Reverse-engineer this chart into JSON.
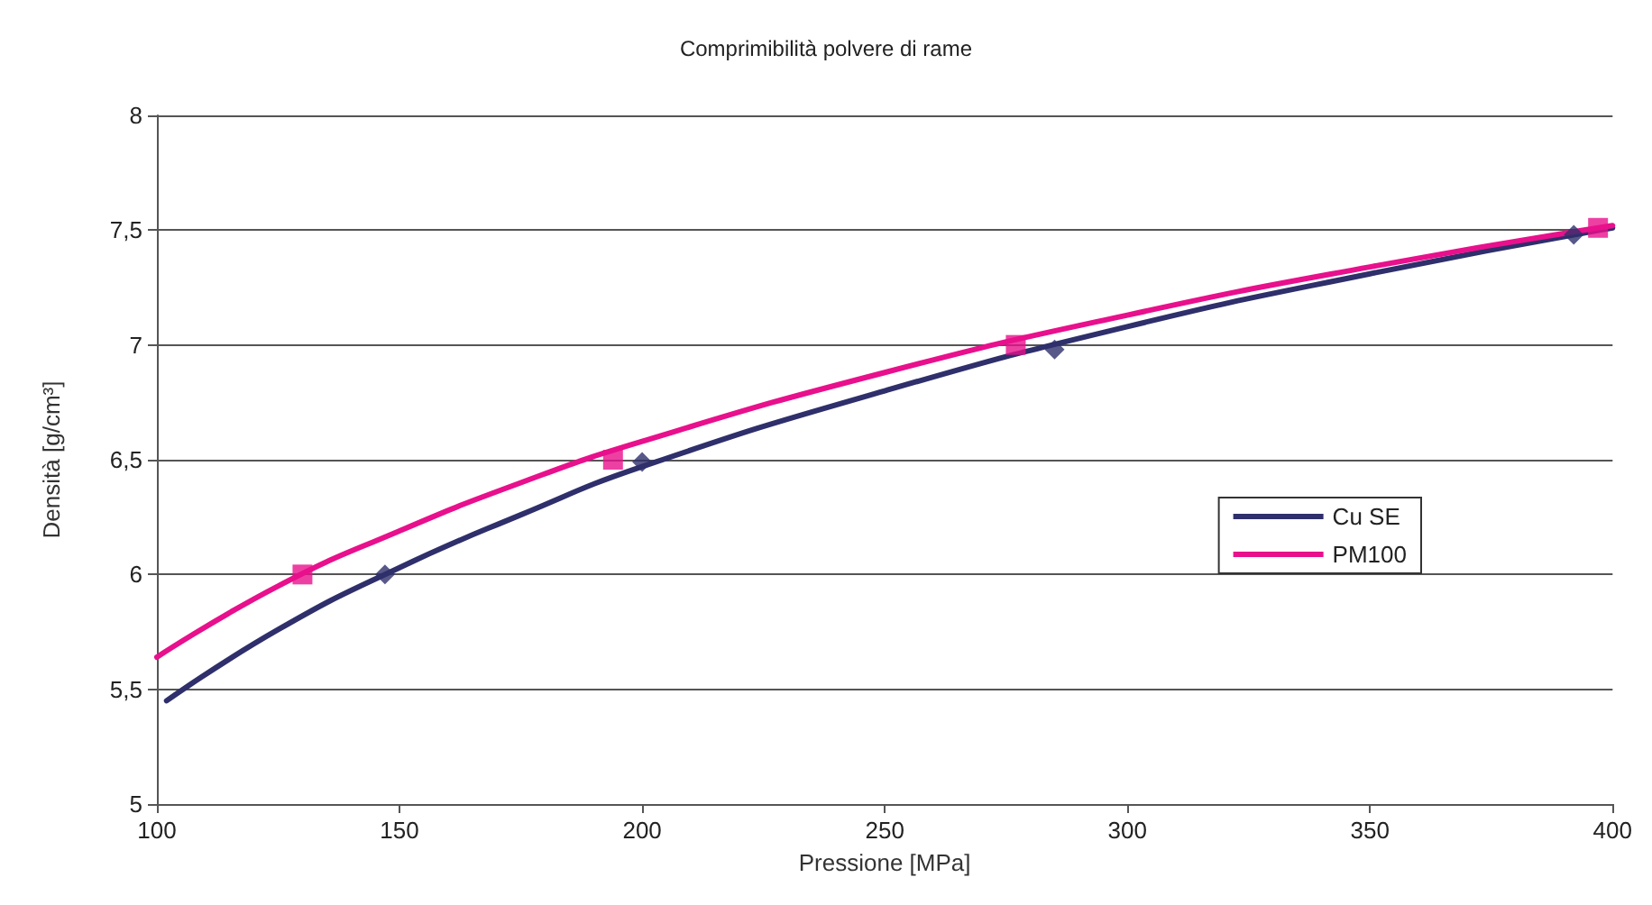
{
  "chart_data": {
    "type": "line",
    "title": "Comprimibilità polvere di rame",
    "xlabel": "Pressione [MPa]",
    "ylabel": "Densità [g/cm³]",
    "xlim": [
      100,
      400
    ],
    "xticks": [
      100,
      150,
      200,
      250,
      300,
      350,
      400
    ],
    "ylim": [
      5,
      8
    ],
    "yticks": [
      5,
      {
        "value": 5.5,
        "label": "5,5"
      },
      6,
      {
        "value": 6.5,
        "label": "6,5"
      },
      7,
      {
        "value": 7.5,
        "label": "7,5"
      },
      8
    ],
    "grid": "y",
    "legend": "right",
    "series": [
      {
        "name": "Cu SE",
        "color": "#2e2f6b",
        "marker": "none",
        "x": [
          102,
          125,
          150,
          175,
          200,
          250,
          300,
          350,
          400
        ],
        "values": [
          5.45,
          5.76,
          6.03,
          6.26,
          6.47,
          6.8,
          7.08,
          7.31,
          7.51
        ]
      },
      {
        "name": "PM100",
        "color": "#e8108c",
        "marker": "none",
        "x": [
          100,
          125,
          150,
          175,
          200,
          250,
          300,
          350,
          400
        ],
        "values": [
          5.64,
          5.95,
          6.19,
          6.4,
          6.58,
          6.88,
          7.13,
          7.34,
          7.52
        ]
      },
      {
        "type": "scatter",
        "color": "#2e2f6b",
        "marker": "diamond",
        "x": [
          147,
          200,
          285,
          392
        ],
        "values": [
          6.0,
          6.49,
          6.98,
          7.48
        ]
      },
      {
        "type": "scatter",
        "color": "#e8108c",
        "marker": "square",
        "x": [
          130,
          194,
          277,
          397
        ],
        "values": [
          6.0,
          6.5,
          7.0,
          7.51
        ]
      }
    ]
  }
}
